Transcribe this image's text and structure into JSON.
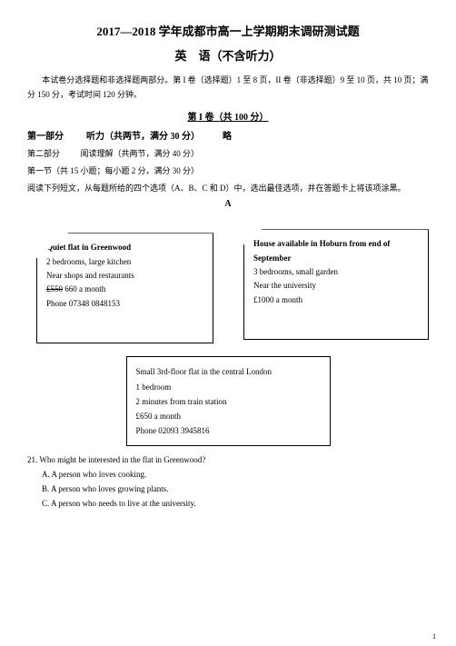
{
  "header": {
    "title_line1": "2017—2018 学年成都市高一上学期期末调研测试题",
    "title_line2": "英　语（不含听力）"
  },
  "intro": "本试卷分选择题和非选择题两部分。第 I 卷（选择题）1 至 8 页，II 卷（非选择题）9 至 10 页，共 10 页；满分 150 分，考试时间 120 分钟。",
  "volume_head": "第 I 卷（共 100 分）",
  "part1": {
    "label": "第一部分",
    "desc": "听力（共两节，满分 30 分）",
    "tail": "略"
  },
  "part2": {
    "label": "第二部分",
    "desc": "阅读理解（共两节，满分 40 分）"
  },
  "section1": "第一节（共 15 小题；每小题 2 分，满分 30 分）",
  "instructions": "阅读下列短文，从每题所给的四个选项（A、B、C 和 D）中，选出最佳选项，并在答题卡上将该项涂黑。",
  "passage_letter": "A",
  "ads": {
    "box1": {
      "title": "Quiet flat in Greenwood",
      "l1": "2 bedrooms, large kitchen",
      "l2": "Near shops and restaurants",
      "l3": "£550  660 a month",
      "l4": "Phone 07348 0848153"
    },
    "box2": {
      "title": "House available in Hoburn from end of September",
      "l1": "3 bedrooms, small garden",
      "l2": "Near the university",
      "l3": "£1000 a month"
    },
    "box3": {
      "title": "Small 3rd-floor flat in the central London",
      "l1": "1 bedroom",
      "l2": "2 minutes from train station",
      "l3": "£650 a month",
      "l4": "Phone 02093 3945816"
    }
  },
  "question": {
    "stem": "21. Who might be interested in the flat in Greenwood?",
    "a": "A. A person who loves cooking.",
    "b": "B. A person who loves growing plants.",
    "c": "C. A person who needs to live at the university."
  },
  "page_num": "1"
}
